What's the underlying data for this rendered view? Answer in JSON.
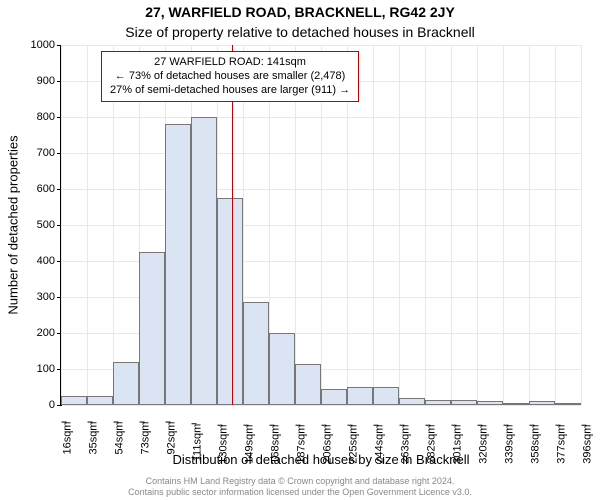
{
  "chart": {
    "type": "histogram",
    "title_main": "27, WARFIELD ROAD, BRACKNELL, RG42 2JY",
    "title_sub": "Size of property relative to detached houses in Bracknell",
    "title_fontsize": 14,
    "ylabel": "Number of detached properties",
    "xlabel": "Distribution of detached houses by size in Bracknell",
    "label_fontsize": 13,
    "background_color": "#ffffff",
    "grid_color": "#e8e8e8",
    "bar_fill": "#dbe4f3",
    "bar_border": "#777777",
    "marker_line_color": "#c00000",
    "marker_value": 141,
    "ylim": [
      0,
      1000
    ],
    "ytick_step": 100,
    "yticks": [
      0,
      100,
      200,
      300,
      400,
      500,
      600,
      700,
      800,
      900,
      1000
    ],
    "x_bin_width": 19,
    "xticks": [
      16,
      35,
      54,
      73,
      92,
      111,
      130,
      149,
      168,
      187,
      206,
      225,
      244,
      263,
      282,
      301,
      320,
      339,
      358,
      377,
      396
    ],
    "xtick_suffix": "sqm",
    "values": [
      25,
      25,
      120,
      425,
      780,
      800,
      575,
      285,
      200,
      115,
      45,
      50,
      50,
      20,
      15,
      15,
      10,
      5,
      10,
      5
    ],
    "callout": {
      "line1": "27 WARFIELD ROAD: 141sqm",
      "line2": "← 73% of detached houses are smaller (2,478)",
      "line3": "27% of semi-detached houses are larger (911) →"
    },
    "footer": {
      "line1": "Contains HM Land Registry data © Crown copyright and database right 2024.",
      "line2": "Contains public sector information licensed under the Open Government Licence v3.0."
    }
  }
}
